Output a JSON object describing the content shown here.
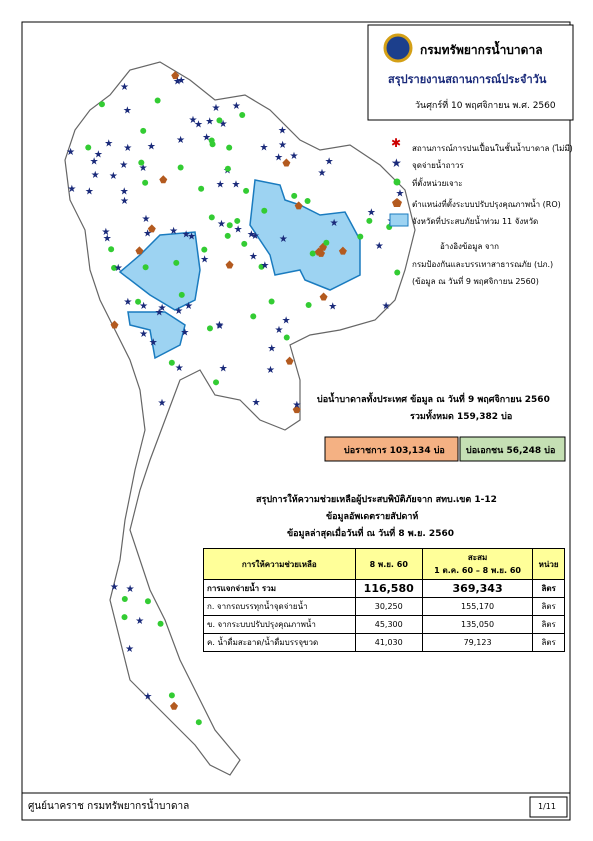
{
  "header": {
    "org": "กรมทรัพยากรน้ำบาดาล",
    "title": "สรุปรายงานสถานการณ์ประจำวัน",
    "date": "วันศุกร์ที่ 10 พฤศจิกายน พ.ศ. 2560"
  },
  "legend": [
    "สถานการณ์การปนเปื้อนในชั้นน้ำบาดาล (ไม่มี)",
    "จุดจ่ายน้ำถาวร",
    "ที่ตั้งหน่วยเจาะ",
    "ตำแหน่งที่ตั้งระบบปรับปรุงคุณภาพน้ำ (RO)",
    "จังหวัดที่ประสบภัยน้ำท่วม 11 จังหวัด"
  ],
  "source": [
    "อ้างอิงข้อมูล จาก",
    "กรมป้องกันและบรรเทาสาธารณภัย (ปภ.)",
    "(ข้อมูล ณ วันที่ 9 พฤศจิกายน 2560)"
  ],
  "wells": {
    "title": "บ่อน้ำบาดาลทั้งประเทศ ข้อมูล ณ วันที่ 9 พฤศจิกายน 2560",
    "total": "รวมทั้งหมด 159,382 บ่อ",
    "government": "บ่อราชการ 103,134 บ่อ",
    "private": "บ่อเอกชน 56,248 บ่อ"
  },
  "assistance": {
    "title": [
      "สรุปการให้ความช่วยเหลือผู้ประสบพิบัติภัยจาก สทบ.เขต 1-12",
      "ข้อมูลอัพเดตรายสัปดาห์",
      "ข้อมูลล่าสุดเมื่อวันที่ ณ วันที่ 8 พ.ย. 2560"
    ],
    "table": {
      "header": [
        "การให้ความช่วยเหลือ",
        "8 พ.ย. 60",
        "สะสม",
        "1 ต.ค. 60 – 8 พ.ย. 60",
        "หน่วย"
      ],
      "rows": [
        [
          "การแจกจ่ายน้ำ รวม",
          "116,580",
          "369,343",
          "ลิตร"
        ],
        [
          "ก. จากรถบรรทุกน้ำจุดจ่ายน้ำ",
          "30,250",
          "155,170",
          "ลิตร"
        ],
        [
          "ข. จากระบบปรับปรุงคุณภาพน้ำ",
          "45,300",
          "135,050",
          "ลิตร"
        ],
        [
          "ค. น้ำดื่มสะอาด/น้ำดื่มบรรจุขวด",
          "41,030",
          "79,123",
          "ลิตร"
        ]
      ]
    }
  },
  "footer": {
    "left": "ศูนย์นาคราช กรมทรัพยากรน้ำบาดาล",
    "page": "1/11"
  }
}
